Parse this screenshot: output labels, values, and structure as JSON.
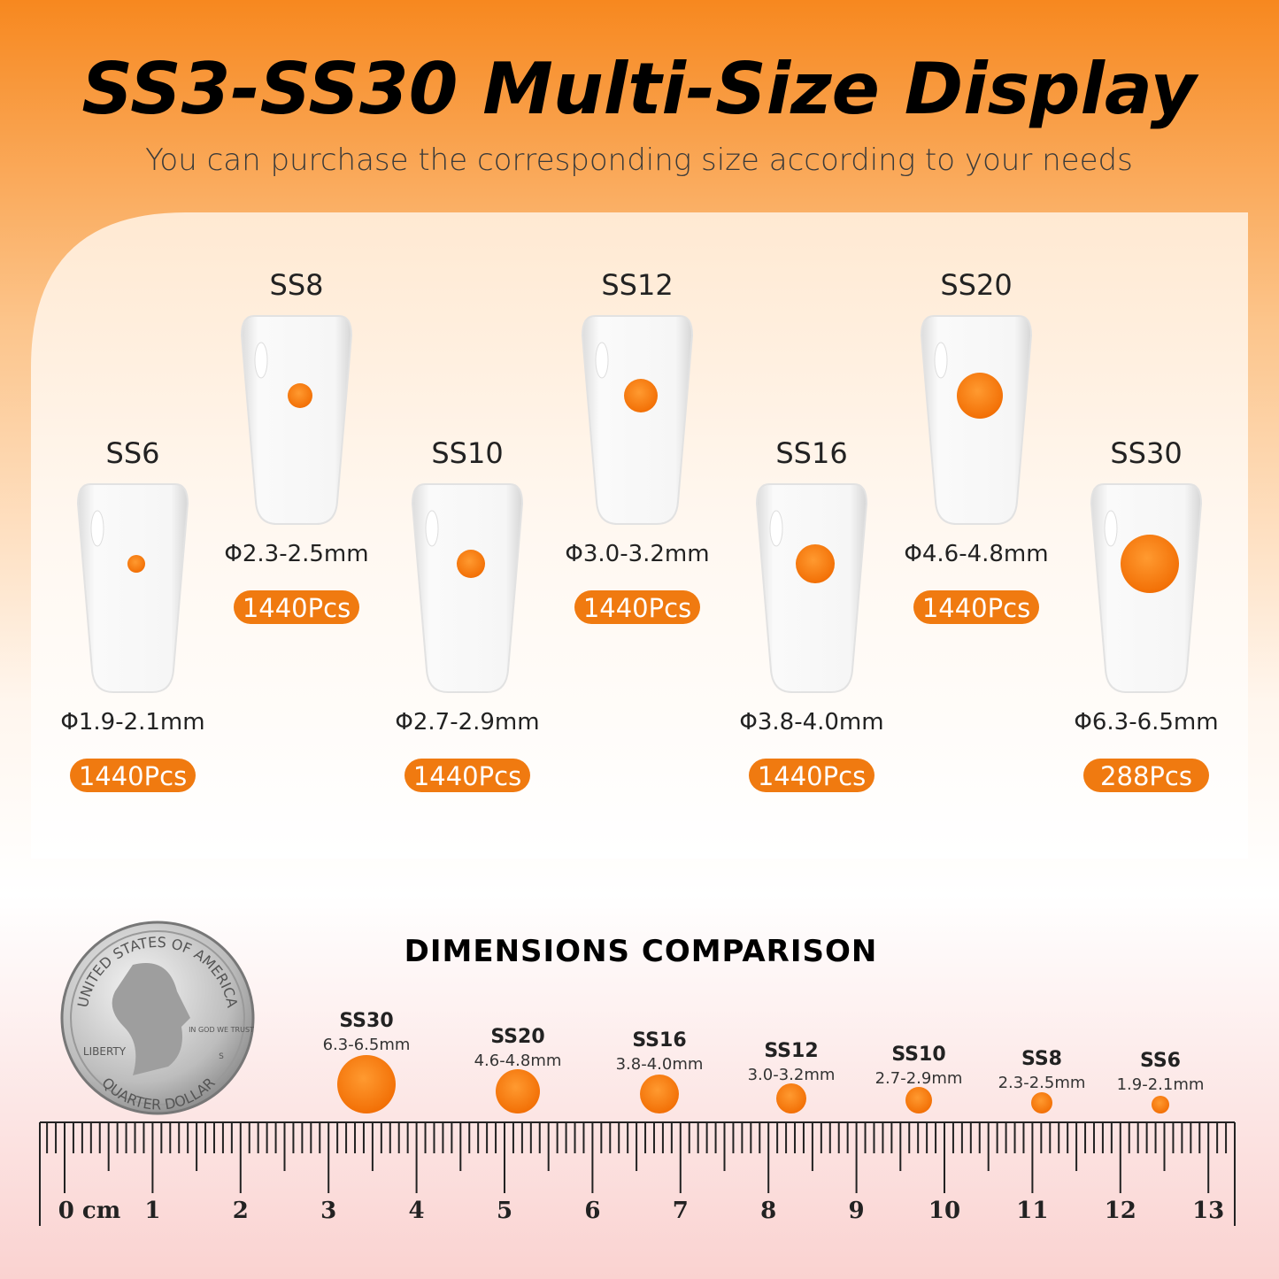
{
  "header": {
    "title": "SS3-SS30 Multi-Size Display",
    "subtitle": "You can purchase the corresponding size according to your needs"
  },
  "nails": [
    {
      "name": "SS6",
      "size": "Φ1.9-2.1mm",
      "count": "1440Pcs"
    },
    {
      "name": "SS8",
      "size": "Φ2.3-2.5mm",
      "count": "1440Pcs"
    },
    {
      "name": "SS10",
      "size": "Φ2.7-2.9mm",
      "count": "1440Pcs"
    },
    {
      "name": "SS12",
      "size": "Φ3.0-3.2mm",
      "count": "1440Pcs"
    },
    {
      "name": "SS16",
      "size": "Φ3.8-4.0mm",
      "count": "1440Pcs"
    },
    {
      "name": "SS20",
      "size": "Φ4.6-4.8mm",
      "count": "1440Pcs"
    },
    {
      "name": "SS30",
      "size": "Φ6.3-6.5mm",
      "count": "288Pcs"
    }
  ],
  "comparison": {
    "title": "DIMENSIONS COMPARISON",
    "items": [
      {
        "name": "SS30",
        "size": "6.3-6.5mm"
      },
      {
        "name": "SS20",
        "size": "4.6-4.8mm"
      },
      {
        "name": "SS16",
        "size": "3.8-4.0mm"
      },
      {
        "name": "SS12",
        "size": "3.0-3.2mm"
      },
      {
        "name": "SS10",
        "size": "2.7-2.9mm"
      },
      {
        "name": "SS8",
        "size": "2.3-2.5mm"
      },
      {
        "name": "SS6",
        "size": "1.9-2.1mm"
      }
    ]
  },
  "coin": {
    "top": "UNITED STATES OF AMERICA",
    "bottom": "QUARTER DOLLAR",
    "left": "LIBERTY",
    "motto": "IN GOD WE TRUST",
    "mint": "S"
  },
  "ruler": {
    "labels": [
      "0 cm",
      "1",
      "2",
      "3",
      "4",
      "5",
      "6",
      "7",
      "8",
      "9",
      "10",
      "11",
      "12",
      "13"
    ]
  }
}
